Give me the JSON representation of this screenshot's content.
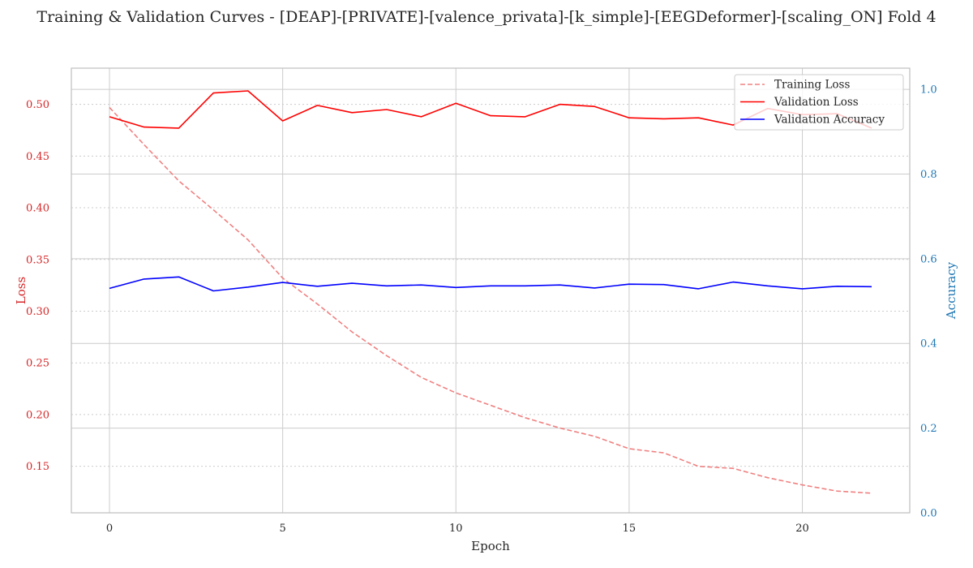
{
  "chart_data": {
    "type": "line",
    "title": "Training & Validation Curves - [DEAP]-[PRIVATE]-[valence_privata]-[k_simple]-[EEGDeformer]-[scaling_ON] Fold 4",
    "xlabel": "Epoch",
    "ylabel_left": "Loss",
    "ylabel_right": "Accuracy",
    "xlim": [
      -1.1,
      23.1
    ],
    "ylim_left": [
      0.105,
      0.535
    ],
    "ylim_right": [
      0.0,
      1.05
    ],
    "x_ticks": [
      0,
      5,
      10,
      15,
      20
    ],
    "y_ticks_left": [
      0.15,
      0.2,
      0.25,
      0.3,
      0.35,
      0.4,
      0.45,
      0.5
    ],
    "y_ticks_right": [
      0.0,
      0.2,
      0.4,
      0.6,
      0.8,
      1.0
    ],
    "grid": true,
    "legend_position": "top-right",
    "x": [
      0,
      1,
      2,
      3,
      4,
      5,
      6,
      7,
      8,
      9,
      10,
      11,
      12,
      13,
      14,
      15,
      16,
      17,
      18,
      19,
      20,
      21,
      22
    ],
    "series": [
      {
        "name": "Training Loss",
        "axis": "left",
        "style": "dashed",
        "color": "#f08080",
        "values": [
          0.497,
          0.461,
          0.426,
          0.398,
          0.369,
          0.332,
          0.307,
          0.28,
          0.257,
          0.236,
          0.221,
          0.209,
          0.197,
          0.187,
          0.179,
          0.167,
          0.163,
          0.15,
          0.148,
          0.139,
          0.132,
          0.126,
          0.124
        ]
      },
      {
        "name": "Validation Loss",
        "axis": "left",
        "style": "solid",
        "color": "#ff0000",
        "values": [
          0.488,
          0.478,
          0.477,
          0.511,
          0.513,
          0.484,
          0.499,
          0.492,
          0.495,
          0.488,
          0.501,
          0.489,
          0.488,
          0.5,
          0.498,
          0.487,
          0.486,
          0.487,
          0.48,
          0.496,
          0.49,
          0.491,
          0.477
        ]
      },
      {
        "name": "Validation Accuracy",
        "axis": "right",
        "style": "solid",
        "color": "#0000ff",
        "values": [
          0.53,
          0.552,
          0.557,
          0.524,
          0.533,
          0.544,
          0.535,
          0.542,
          0.536,
          0.538,
          0.532,
          0.536,
          0.536,
          0.538,
          0.531,
          0.54,
          0.539,
          0.529,
          0.545,
          0.536,
          0.529,
          0.535,
          0.534
        ]
      }
    ]
  },
  "colors": {
    "left_axis": "#d62728",
    "right_axis": "#1f77b4",
    "text": "#262626",
    "grid": "#cccccc"
  }
}
